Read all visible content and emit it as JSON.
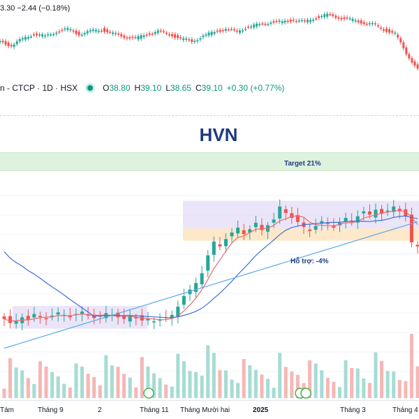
{
  "header": {
    "change_text": "3.30  −2.44 (−0.18%)"
  },
  "info_bar": {
    "symbol": "n - CTCP · 1D · HSX",
    "o_label": "O",
    "o_value": "38.80",
    "h_label": "H",
    "h_value": "39.10",
    "l_label": "L",
    "l_value": "38.65",
    "c_label": "C",
    "c_value": "39.10",
    "change": "+0.30 (+0.77%)"
  },
  "title": "HVN",
  "annotations": {
    "target": "Target 21%",
    "support": "Hỗ trợ: -4%"
  },
  "x_ticks": [
    {
      "label": "Tám",
      "bold": false
    },
    {
      "label": "Tháng 9",
      "bold": false
    },
    {
      "label": "2",
      "bold": false
    },
    {
      "label": "Tháng 11",
      "bold": false
    },
    {
      "label": "Tháng Mười hai",
      "bold": false
    },
    {
      "label": "2025",
      "bold": true
    },
    {
      "label": "Tháng 3",
      "bold": false
    },
    {
      "label": "Tháng 4",
      "bold": false
    }
  ],
  "colors": {
    "up": "#26a69a",
    "down": "#ef5350",
    "ma_short": "#f06a6a",
    "ma_mid": "#3d6fd8",
    "ma_long": "#5aa9e6",
    "range_box": "#e3dcf7",
    "support_zone": "#fde6c4",
    "target_zone": "#dff2dd"
  },
  "chart_data": [
    {
      "type": "line",
      "description_free": true,
      "series": [
        {
          "values": [
            30,
            28,
            31,
            33,
            32,
            34,
            35,
            33,
            34,
            35,
            33,
            32,
            31,
            33,
            34,
            33,
            31,
            30,
            32,
            34,
            35,
            34,
            36,
            37,
            38,
            38,
            39,
            38,
            40,
            41,
            40,
            39,
            38,
            37,
            35,
            33,
            25,
            18
          ]
        }
      ],
      "grid": false
    },
    {
      "type": "candlestick",
      "x_ticks": [
        "Tám",
        "Tháng 9",
        "2",
        "Tháng 11",
        "Tháng Mười hai",
        "2025",
        "Tháng 3",
        "Tháng 4"
      ],
      "close": [
        24.0,
        23.5,
        23.8,
        24.2,
        23.9,
        24.6,
        24.3,
        24.0,
        24.4,
        24.8,
        24.5,
        24.2,
        24.6,
        24.9,
        24.4,
        24.1,
        24.3,
        24.7,
        24.5,
        24.2,
        24.0,
        24.3,
        24.1,
        23.8,
        24.0,
        23.7,
        23.9,
        24.2,
        24.5,
        25.5,
        26.8,
        27.6,
        28.4,
        29.6,
        31.8,
        33.5,
        32.9,
        33.8,
        34.6,
        35.2,
        34.4,
        35.0,
        35.8,
        34.9,
        35.5,
        36.2,
        37.8,
        37.0,
        36.4,
        35.9,
        35.3,
        34.8,
        35.4,
        36.0,
        35.7,
        35.2,
        35.8,
        36.4,
        35.9,
        36.6,
        37.2,
        36.8,
        37.4,
        36.9,
        37.3,
        37.8,
        37.2,
        36.6,
        33.4,
        32.9
      ],
      "ma_series": [
        "short",
        "mid",
        "long"
      ],
      "annotations": [
        "Target 21%",
        "Hỗ trợ: -4%"
      ],
      "grid": true
    }
  ]
}
